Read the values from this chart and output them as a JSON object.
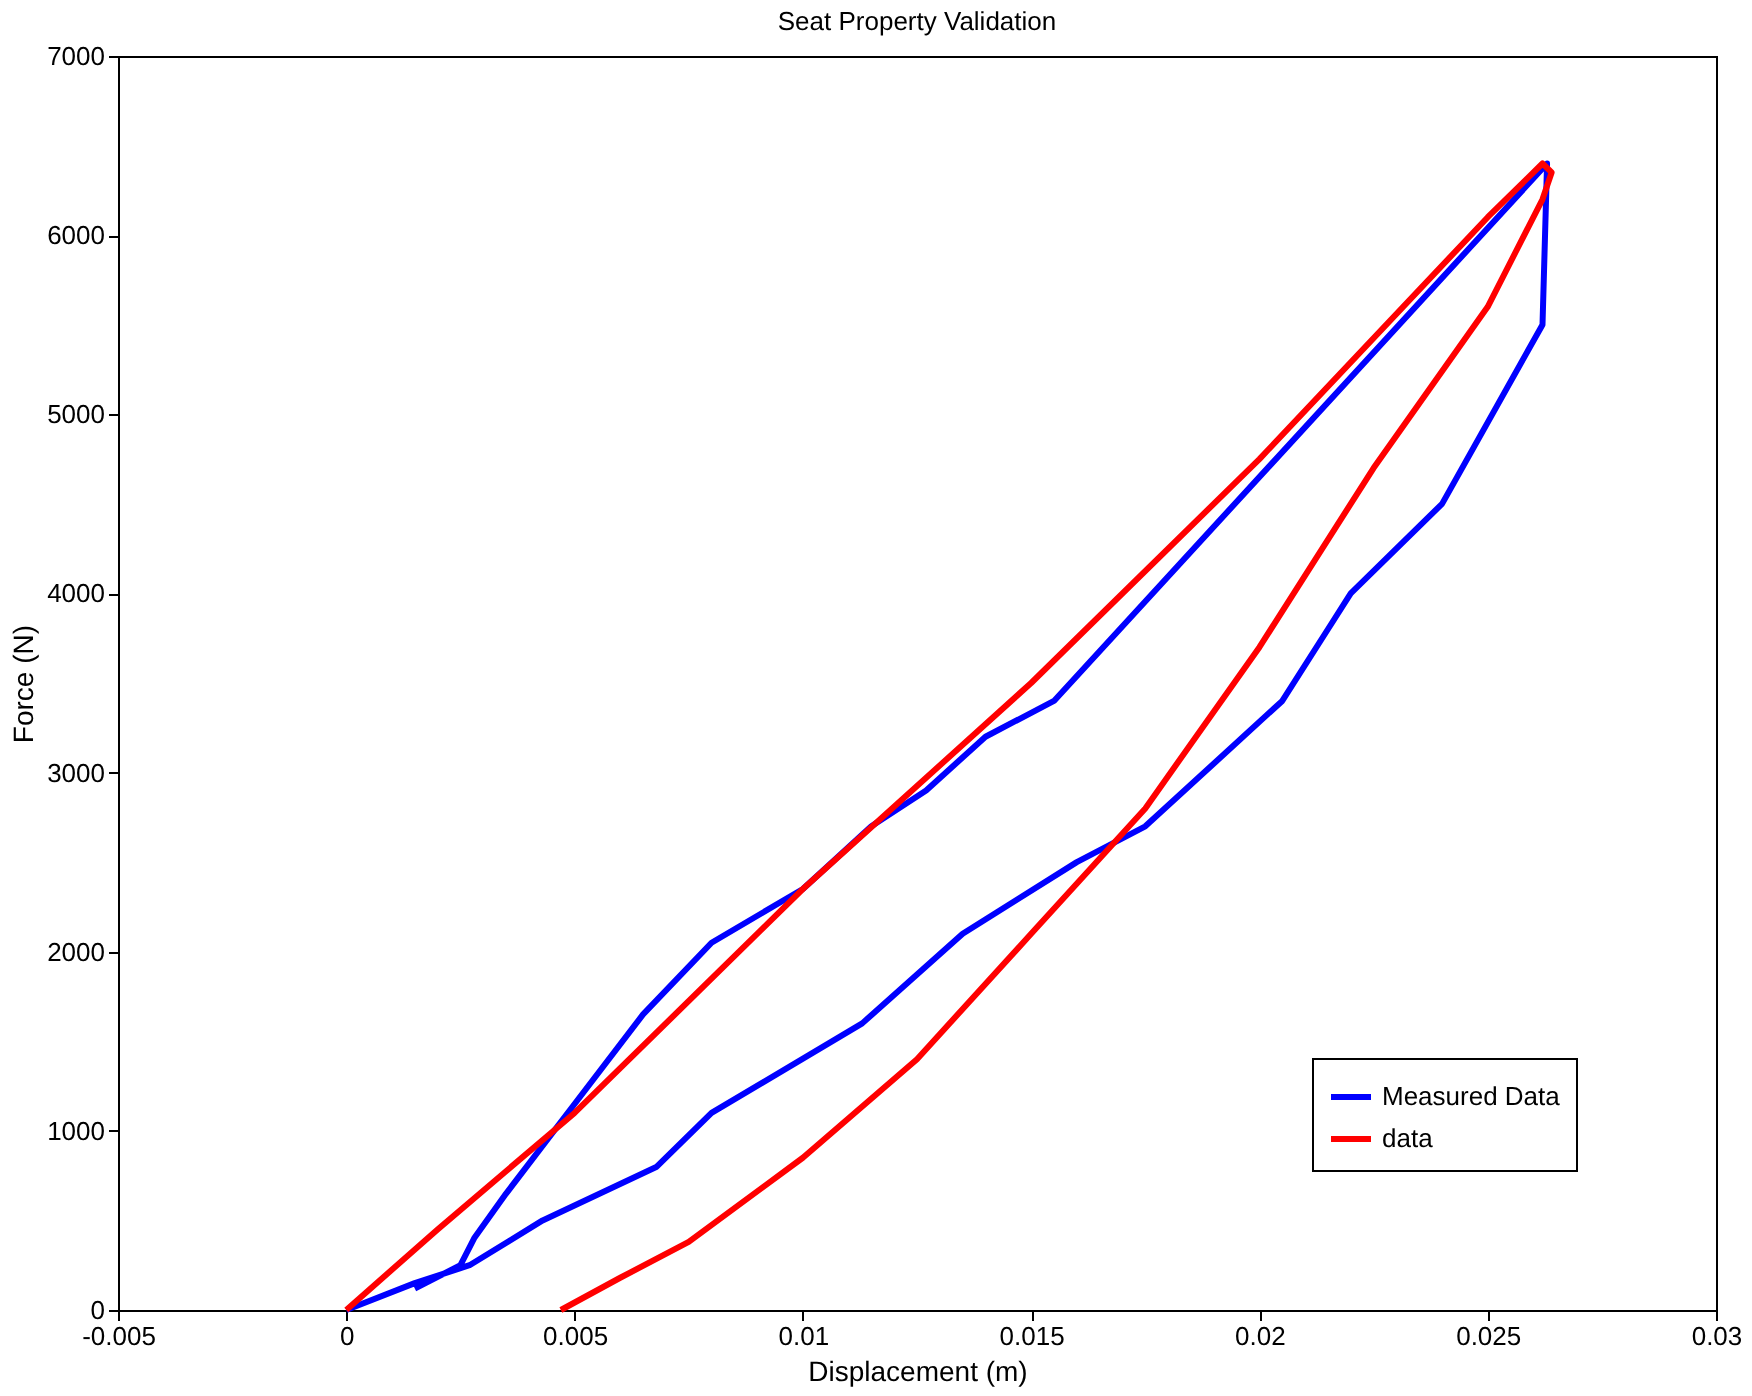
{
  "chart_data": {
    "type": "line",
    "title": "Seat Property Validation",
    "xlabel": "Displacement (m)",
    "ylabel": "Force (N)",
    "xlim": [
      -0.005,
      0.03
    ],
    "xticks": [
      -0.005,
      0,
      0.005,
      0.01,
      0.015,
      0.02,
      0.025,
      0.03
    ],
    "ylim": [
      0,
      7000
    ],
    "yticks": [
      0,
      1000,
      2000,
      3000,
      4000,
      5000,
      6000,
      7000
    ],
    "grid": false,
    "legend": "bottom right",
    "line_style": "solid",
    "marker": "none",
    "series": [
      {
        "name": "Measured Data",
        "color": "#0000ff",
        "x": [
          0,
          0.0015,
          0.0027,
          0.0043,
          0.0068,
          0.008,
          0.0113,
          0.0135,
          0.016,
          0.0175,
          0.0205,
          0.0215,
          0.022,
          0.024,
          0.0262,
          0.0263,
          0.0155,
          0.014,
          0.0127,
          0.0115,
          0.01,
          0.008,
          0.0065,
          0.005,
          0.0035,
          0.0028,
          0.0025,
          0.0015
        ],
        "values": [
          0,
          150,
          250,
          500,
          800,
          1100,
          1600,
          2100,
          2500,
          2700,
          3400,
          3800,
          4000,
          4500,
          5500,
          6400,
          3400,
          3200,
          2900,
          2700,
          2350,
          2050,
          1650,
          1150,
          650,
          400,
          250,
          120
        ]
      },
      {
        "name": "data",
        "color": "#ff0000",
        "x": [
          0,
          0.002,
          0.005,
          0.01,
          0.015,
          0.02,
          0.025,
          0.0262,
          0.0264,
          0.0262,
          0.025,
          0.0225,
          0.02,
          0.0175,
          0.015,
          0.0125,
          0.01,
          0.0075,
          0.006,
          0.0047
        ],
        "values": [
          0,
          450,
          1100,
          2350,
          3500,
          4750,
          6100,
          6400,
          6350,
          6200,
          5600,
          4700,
          3700,
          2800,
          2100,
          1400,
          850,
          380,
          180,
          0
        ]
      }
    ]
  }
}
